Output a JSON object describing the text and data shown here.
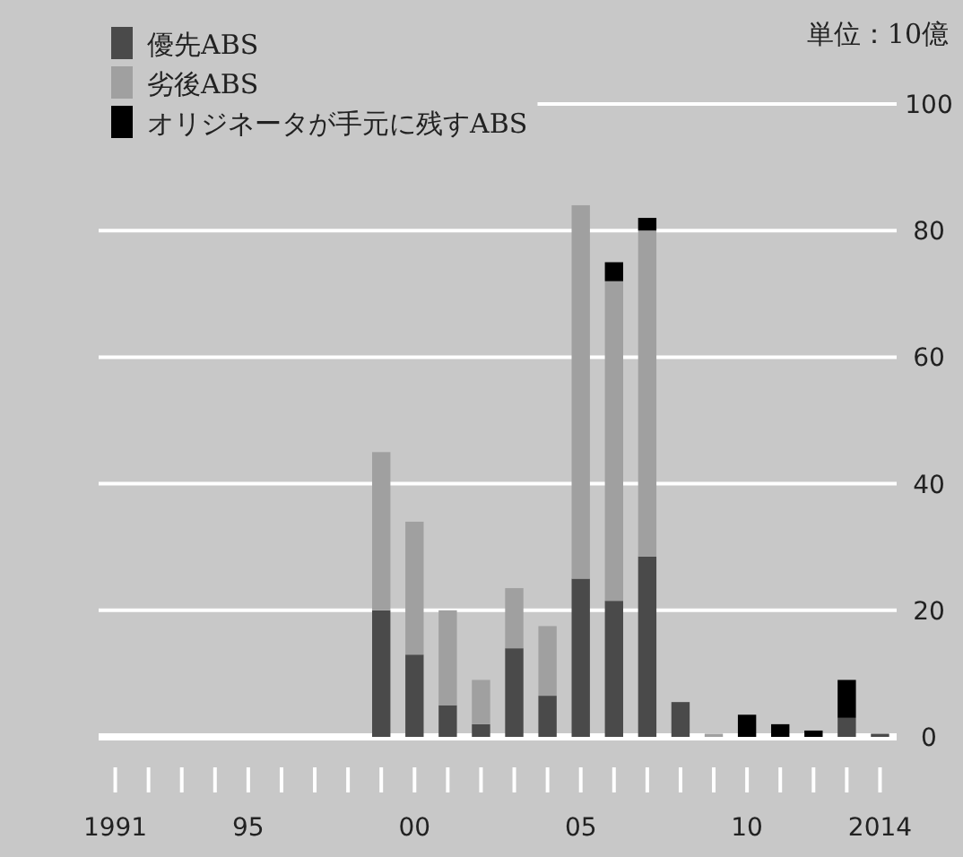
{
  "chart_data": {
    "type": "bar",
    "stacked": true,
    "categories": [
      "1991",
      null,
      null,
      null,
      "95",
      null,
      null,
      null,
      null,
      "00",
      null,
      null,
      null,
      null,
      "05",
      null,
      null,
      null,
      null,
      "10",
      null,
      null,
      null,
      "2014"
    ],
    "series": [
      {
        "name": "優先ABS",
        "color": "#4a4a4a",
        "values": [
          null,
          null,
          null,
          null,
          null,
          null,
          null,
          null,
          20,
          13,
          5,
          2,
          14,
          6.5,
          25,
          21.5,
          28.5,
          5.5,
          null,
          null,
          null,
          null,
          3,
          0.5
        ]
      },
      {
        "name": "劣後ABS",
        "color": "#a0a0a0",
        "values": [
          null,
          null,
          null,
          null,
          null,
          null,
          null,
          null,
          25,
          21,
          15,
          7,
          9.5,
          11,
          59,
          50.5,
          51.5,
          null,
          0.5,
          null,
          null,
          null,
          null,
          null
        ]
      },
      {
        "name": "オリジネータが手元に残すABS",
        "color": "#000000",
        "values": [
          null,
          null,
          null,
          null,
          null,
          null,
          null,
          null,
          null,
          null,
          null,
          null,
          null,
          null,
          null,
          3,
          2,
          null,
          null,
          3.5,
          2,
          1,
          6,
          null
        ]
      }
    ],
    "ylim": [
      0,
      100
    ],
    "yticks": [
      0,
      20,
      40,
      60,
      80,
      100
    ],
    "grid": "y",
    "legend": "top left",
    "annotations": [
      "単位：10億"
    ]
  }
}
